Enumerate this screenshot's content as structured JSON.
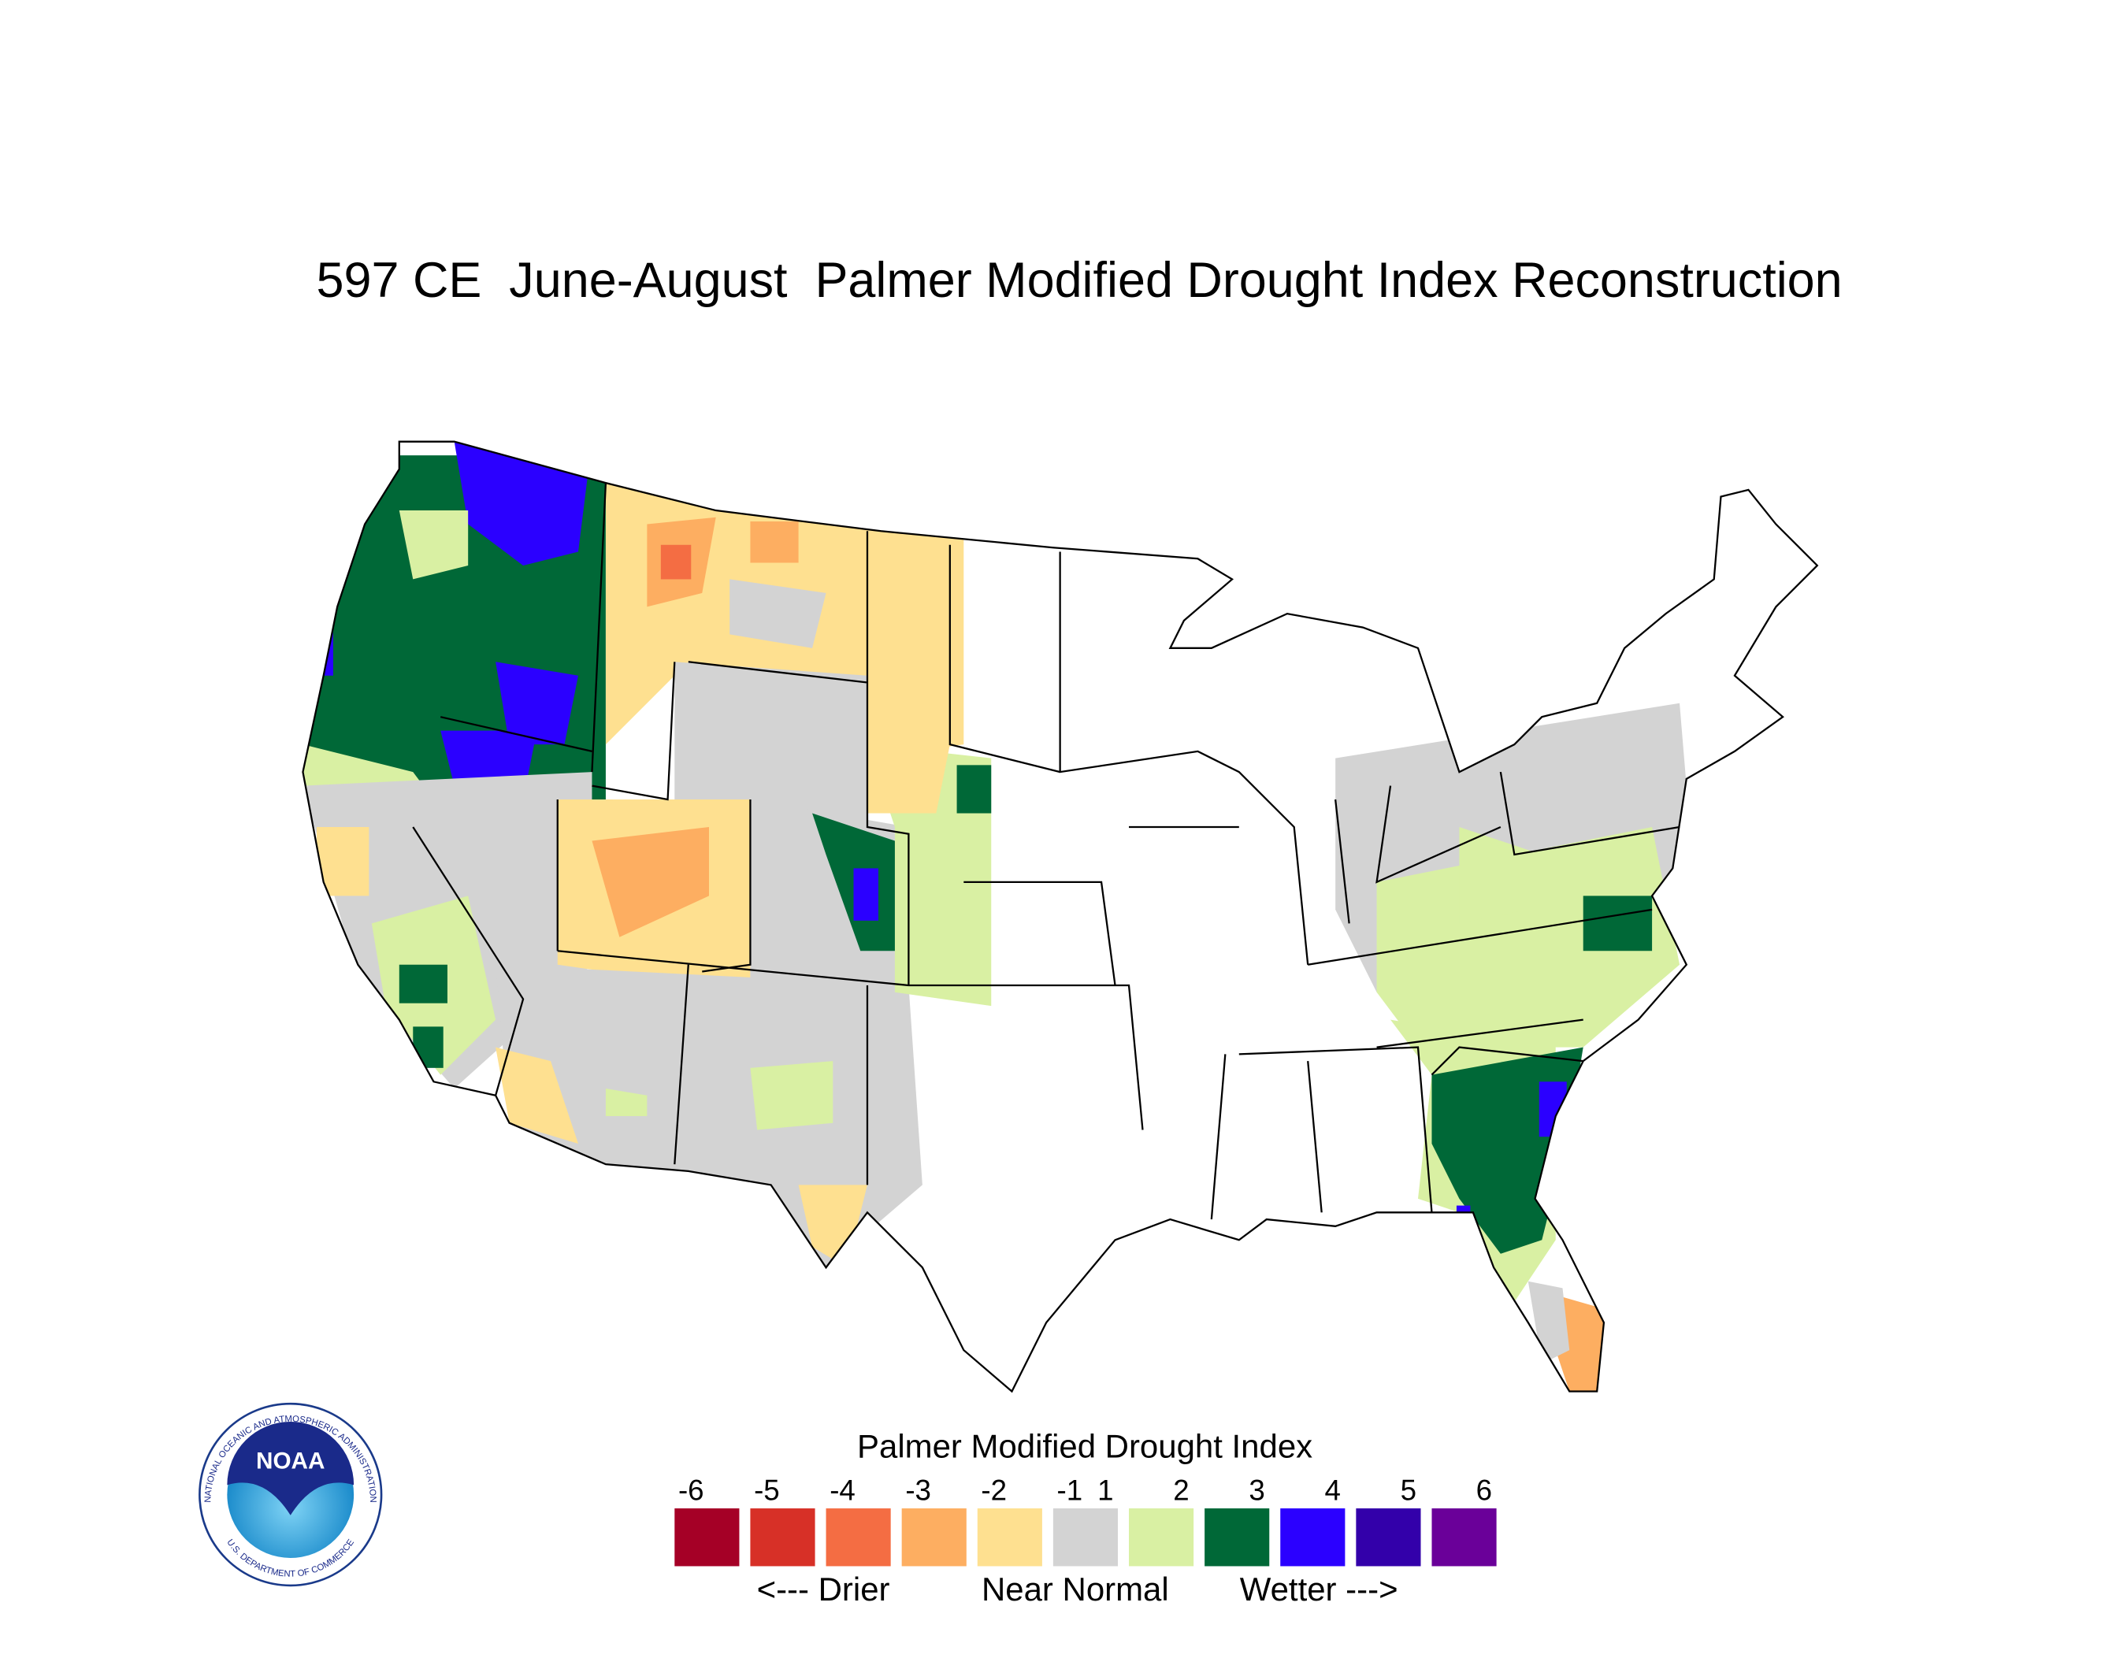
{
  "title": "597 CE  June-August  Palmer Modified Drought Index Reconstruction",
  "legend": {
    "title": "Palmer Modified Drought Index",
    "ticks": [
      -6,
      -5,
      -4,
      -3,
      -2,
      -1,
      1,
      2,
      3,
      4,
      5,
      6
    ],
    "colors": [
      "#a50026",
      "#d73027",
      "#f46d43",
      "#fdae61",
      "#fee090",
      "#d3d3d3",
      "#d9f0a3",
      "#006837",
      "#2b00ff",
      "#3300aa",
      "#6a0099"
    ],
    "captions": [
      "<--- Drier",
      "Near Normal",
      "Wetter --->"
    ]
  },
  "logo": {
    "name": "NOAA",
    "ring_top": "NATIONAL OCEANIC AND ATMOSPHERIC ADMINISTRATION",
    "ring_bottom": "U.S. DEPARTMENT OF COMMERCE"
  }
}
